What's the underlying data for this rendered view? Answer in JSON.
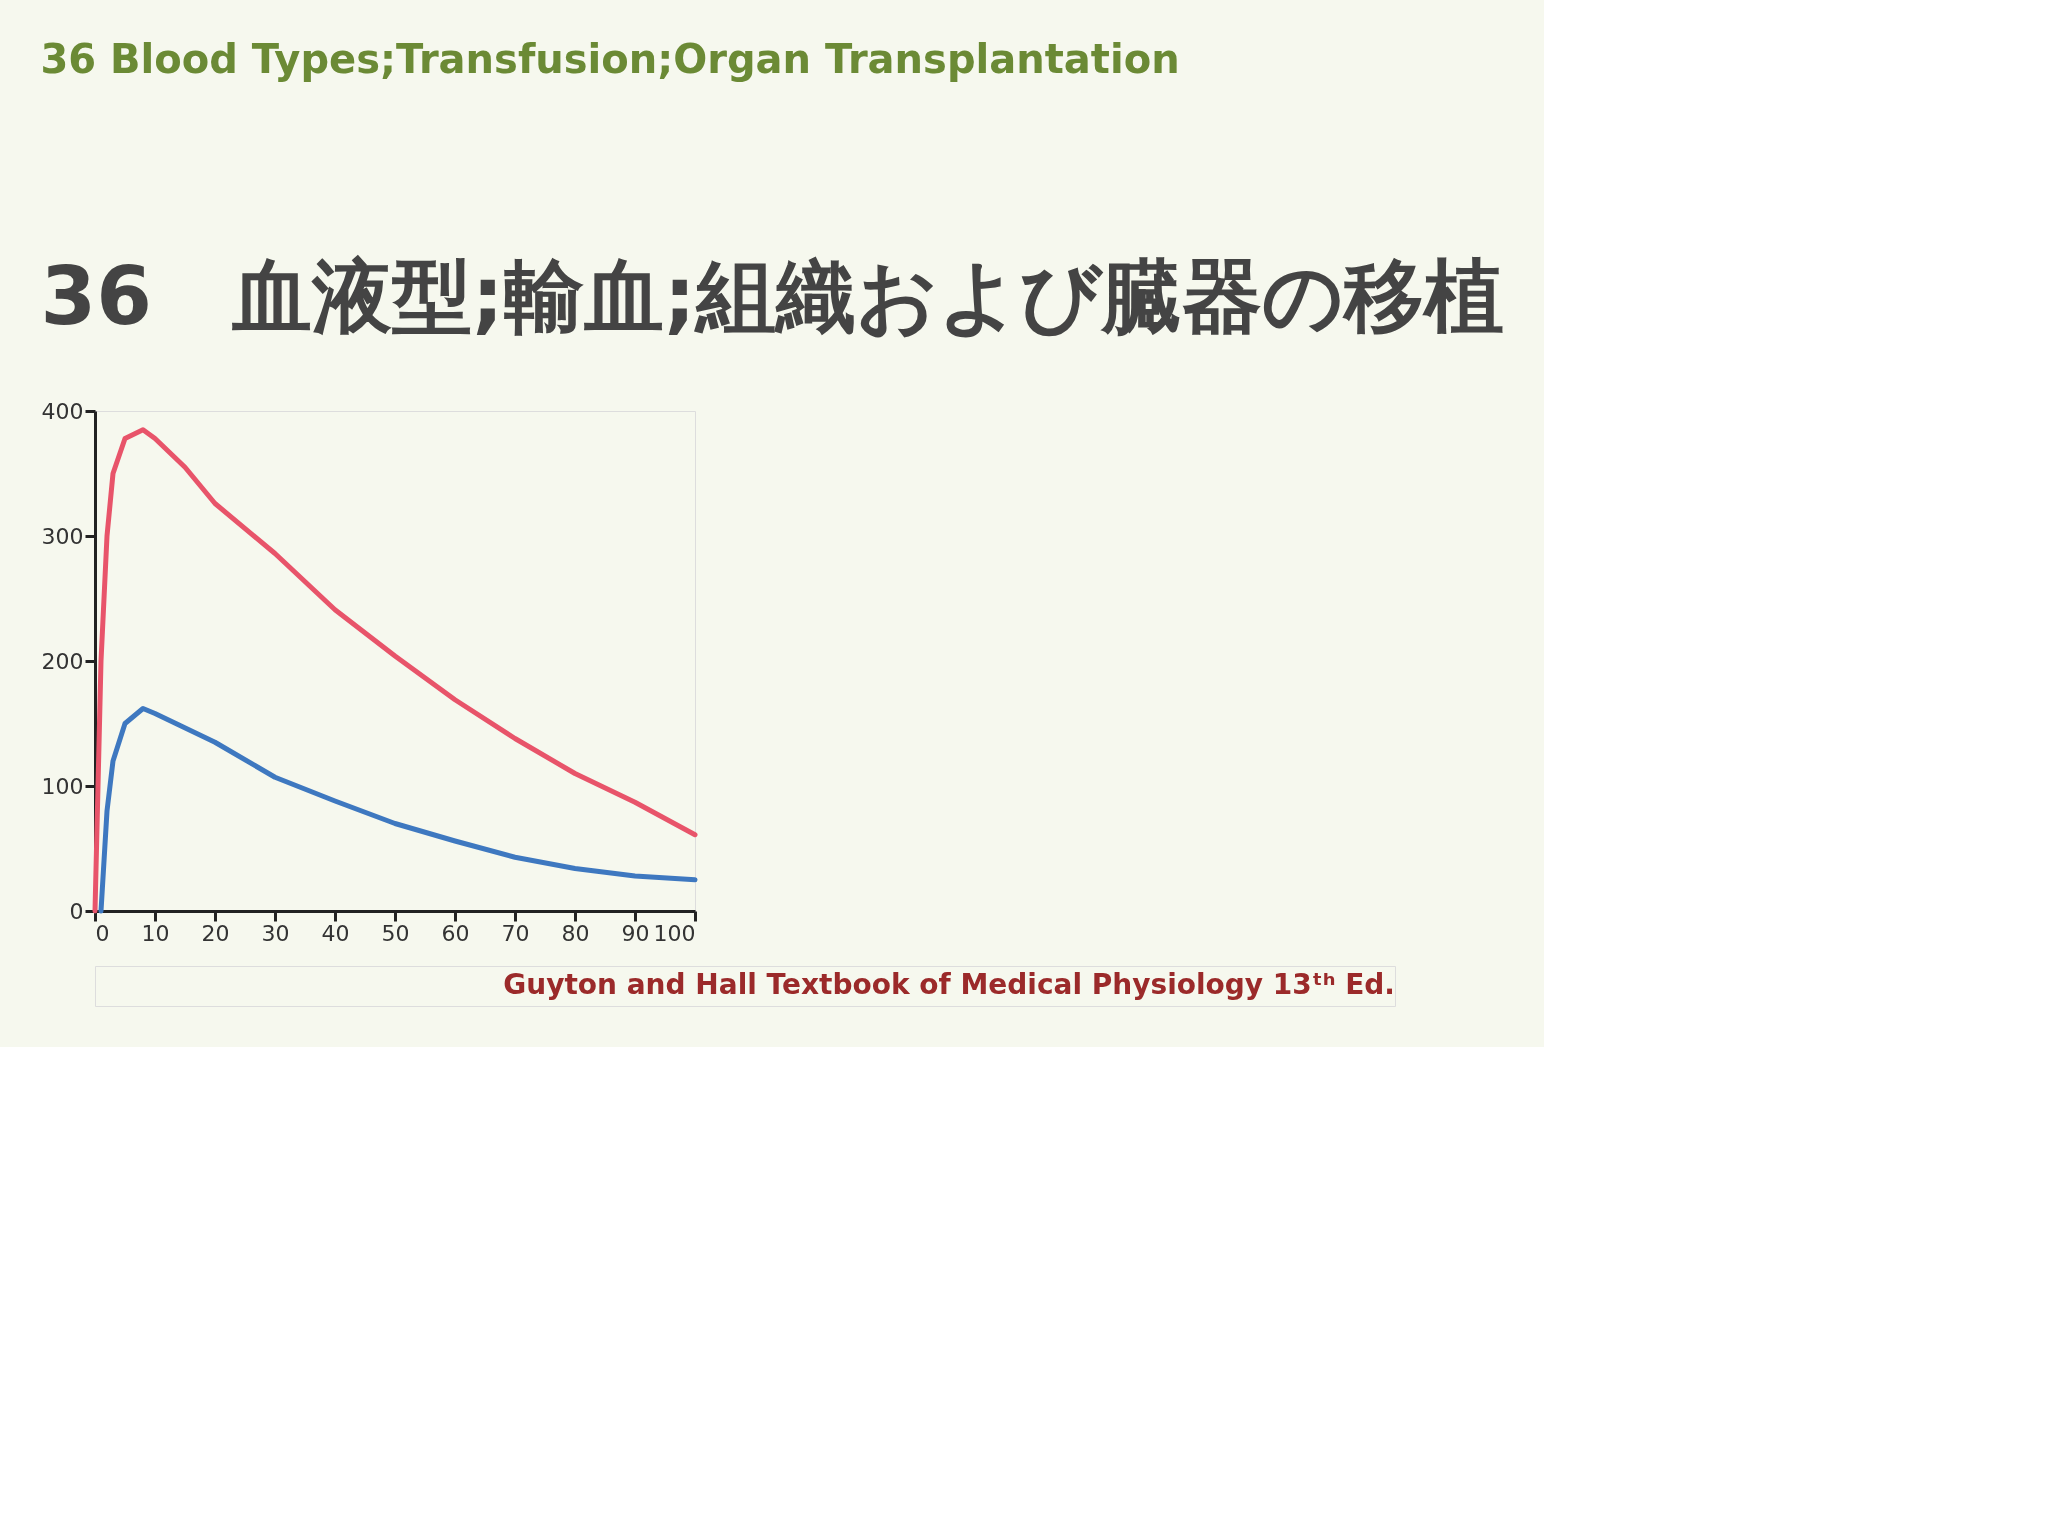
{
  "chart_data": {
    "type": "line",
    "title": "36 Blood Types;Transfusion;Organ Transplantation",
    "subtitle": "36　血液型;輸血;組織および臓器の移植",
    "annotations": [
      "Guyton and Hall Textbook of Medical Physiology 13ᵗʰ Ed."
    ],
    "xlim": [
      0,
      100
    ],
    "xticks": [
      0,
      10,
      20,
      30,
      40,
      50,
      60,
      70,
      80,
      90,
      100
    ],
    "ylim": [
      0,
      400
    ],
    "yticks": [
      0,
      100,
      200,
      300,
      400
    ],
    "grid": false,
    "legend": false,
    "series": [
      {
        "color": "#e8546a",
        "x": [
          0,
          0.5,
          1,
          2,
          3,
          5,
          8,
          10,
          15,
          20,
          30,
          40,
          50,
          60,
          70,
          80,
          90,
          100
        ],
        "values": [
          0,
          100,
          200,
          300,
          350,
          378,
          385,
          378,
          355,
          326,
          286,
          241,
          204,
          169,
          138,
          110,
          87,
          61
        ]
      },
      {
        "color": "#3e78c0",
        "x": [
          1,
          2,
          3,
          5,
          8,
          10,
          20,
          30,
          40,
          50,
          60,
          70,
          80,
          90,
          100
        ],
        "values": [
          0,
          80,
          120,
          150,
          162,
          158,
          135,
          107,
          88,
          70,
          56,
          43,
          34,
          28,
          25
        ]
      }
    ]
  }
}
